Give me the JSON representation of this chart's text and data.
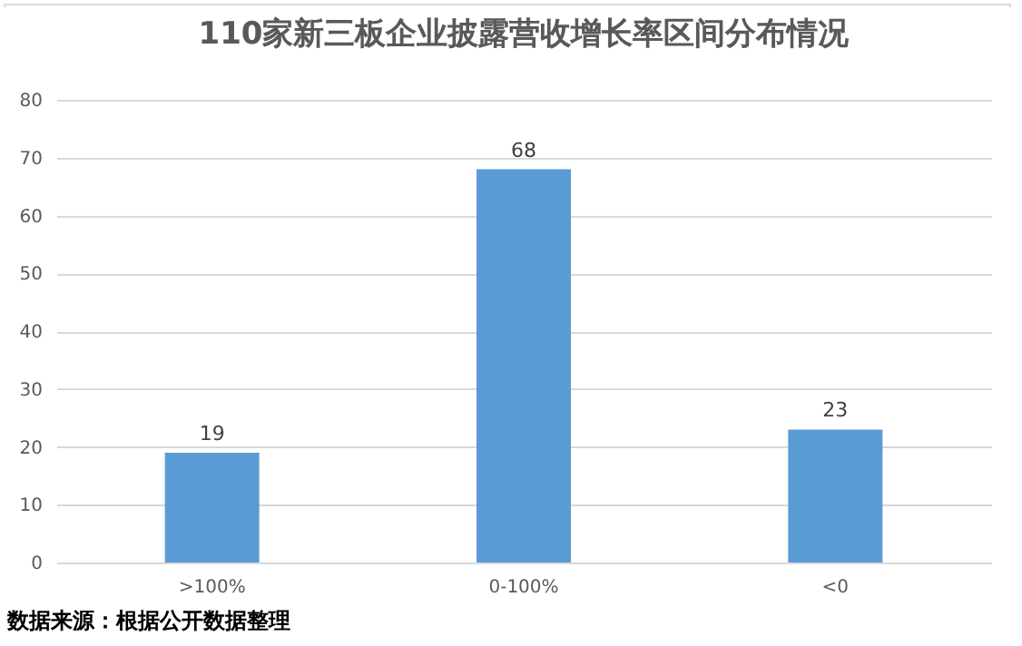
{
  "chart_data": {
    "type": "bar",
    "title": "110家新三板企业披露营收增长率区间分布情况",
    "categories": [
      ">100%",
      "0-100%",
      "<0"
    ],
    "values": [
      19,
      68,
      23
    ],
    "color": "#5b9bd5",
    "ylim": [
      0,
      80
    ],
    "yticks": [
      0,
      10,
      20,
      30,
      40,
      50,
      60,
      70,
      80
    ],
    "grid": "y",
    "data_labels": true,
    "annotations": [
      "数据来源：根据公开数据整理"
    ]
  }
}
